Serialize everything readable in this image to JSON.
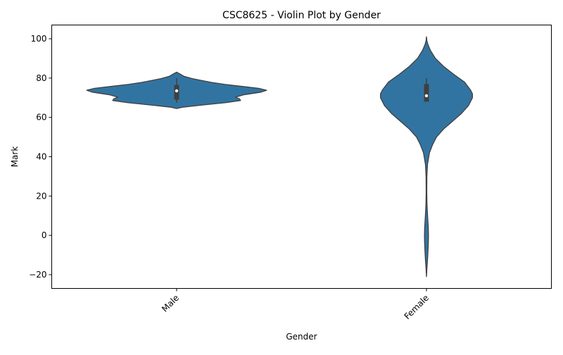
{
  "chart_data": {
    "type": "violin",
    "title": "CSC8625 - Violin Plot by Gender",
    "xlabel": "Gender",
    "ylabel": "Mark",
    "categories": [
      "Male",
      "Female"
    ],
    "ylim": [
      -27,
      107
    ],
    "yticks": [
      -20,
      0,
      20,
      40,
      60,
      80,
      100
    ],
    "ytick_labels": [
      "−20",
      "0",
      "20",
      "40",
      "60",
      "80",
      "100"
    ],
    "grid": false,
    "legend": "none",
    "fill_color": "#3274a1",
    "edge_color": "#3f3f3f",
    "violins": [
      {
        "category": "Male",
        "min": 64.5,
        "max": 83,
        "q1": 69,
        "median": 73.5,
        "q3": 76.5,
        "whisker_low": 67.5,
        "whisker_high": 80,
        "density_profile": [
          [
            64.5,
            0
          ],
          [
            65.2,
            0.06
          ],
          [
            66.2,
            0.24
          ],
          [
            67.5,
            0.49
          ],
          [
            68.6,
            0.64
          ],
          [
            69.4,
            0.63
          ],
          [
            70.3,
            0.59
          ],
          [
            71.5,
            0.67
          ],
          [
            72.8,
            0.84
          ],
          [
            73.8,
            0.9
          ],
          [
            74.8,
            0.82
          ],
          [
            75.8,
            0.65
          ],
          [
            76.8,
            0.48
          ],
          [
            77.8,
            0.35
          ],
          [
            78.8,
            0.25
          ],
          [
            79.8,
            0.15
          ],
          [
            81,
            0.07
          ],
          [
            82.2,
            0.03
          ],
          [
            83,
            0
          ]
        ]
      },
      {
        "category": "Female",
        "min": -21,
        "max": 101,
        "q1": 68,
        "median": 71,
        "q3": 77,
        "whisker_low": 68,
        "whisker_high": 80,
        "density_profile": [
          [
            -21,
            0
          ],
          [
            -17,
            0.004
          ],
          [
            -12,
            0.011
          ],
          [
            -7,
            0.016
          ],
          [
            -3,
            0.019
          ],
          [
            0,
            0.02
          ],
          [
            4,
            0.018
          ],
          [
            10,
            0.011
          ],
          [
            16,
            0.005
          ],
          [
            22,
            0.003
          ],
          [
            30,
            0.004
          ],
          [
            36,
            0.01
          ],
          [
            42,
            0.03
          ],
          [
            46,
            0.06
          ],
          [
            50,
            0.1
          ],
          [
            54,
            0.17
          ],
          [
            58,
            0.26
          ],
          [
            62,
            0.35
          ],
          [
            66,
            0.42
          ],
          [
            70,
            0.46
          ],
          [
            72,
            0.46
          ],
          [
            74,
            0.44
          ],
          [
            78,
            0.38
          ],
          [
            82,
            0.27
          ],
          [
            86,
            0.17
          ],
          [
            90,
            0.09
          ],
          [
            94,
            0.04
          ],
          [
            97,
            0.015
          ],
          [
            99,
            0.004
          ],
          [
            101,
            0
          ]
        ]
      }
    ]
  }
}
